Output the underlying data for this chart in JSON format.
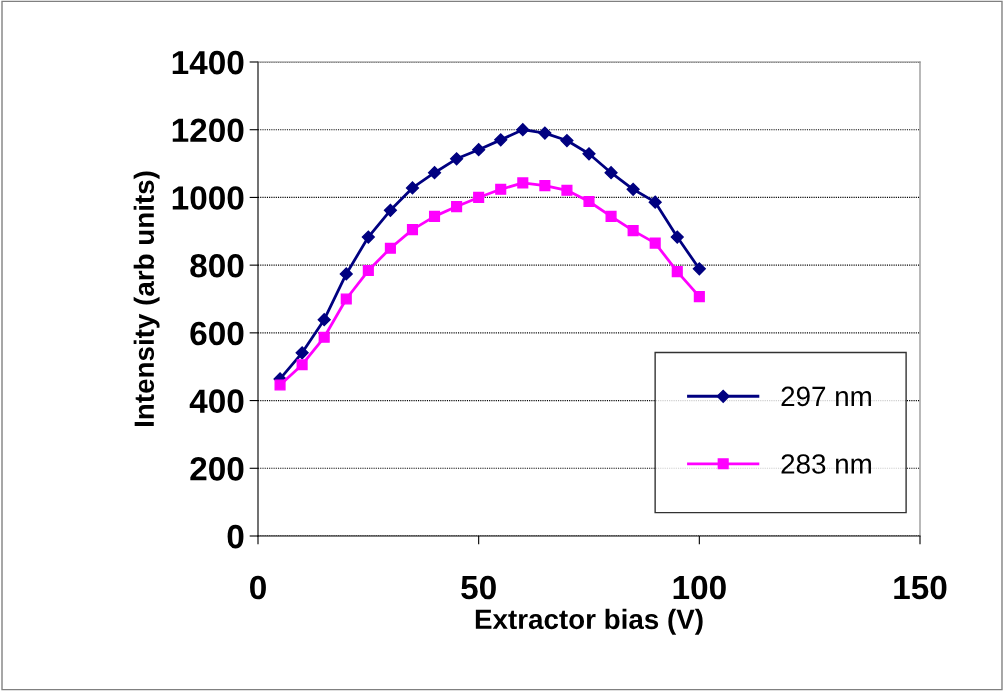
{
  "chart_data": {
    "type": "line",
    "xlabel": "Extractor bias (V)",
    "ylabel": "Intensity (arb units)",
    "x": [
      5,
      10,
      15,
      20,
      25,
      30,
      35,
      40,
      45,
      50,
      55,
      60,
      65,
      70,
      75,
      80,
      85,
      90,
      95,
      100
    ],
    "series": [
      {
        "name": "297 nm",
        "color": "#000080",
        "marker": "diamond",
        "values": [
          464,
          541,
          639,
          774,
          883,
          962,
          1028,
          1073,
          1114,
          1141,
          1170,
          1200,
          1190,
          1168,
          1129,
          1073,
          1024,
          986,
          883,
          789
        ]
      },
      {
        "name": "283 nm",
        "color": "#ff00ff",
        "marker": "square",
        "values": [
          446,
          506,
          587,
          700,
          784,
          850,
          905,
          944,
          973,
          1000,
          1024,
          1043,
          1035,
          1021,
          988,
          944,
          902,
          865,
          781,
          707
        ]
      }
    ],
    "xlim": [
      0,
      150
    ],
    "xticks": [
      0,
      50,
      100,
      150
    ],
    "ylim": [
      0,
      1400
    ],
    "yticks": [
      0,
      200,
      400,
      600,
      800,
      1000,
      1200,
      1400
    ],
    "grid": "y",
    "legend": "bottom right",
    "line_style": "solid"
  }
}
